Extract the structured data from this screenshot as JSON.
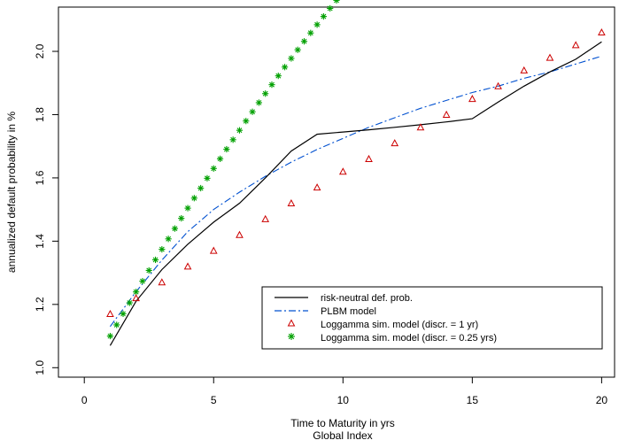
{
  "chart_data": {
    "type": "line",
    "xlabel": "Time to Maturity in yrs",
    "xlabel2": "Global Index",
    "ylabel": "annualized default probability in %",
    "xlim": [
      -1,
      20.5
    ],
    "ylim": [
      0.97,
      2.14
    ],
    "xticks": [
      0,
      5,
      10,
      15,
      20
    ],
    "yticks": [
      1.0,
      1.2,
      1.4,
      1.6,
      1.8,
      2.0
    ],
    "ytick_labels": [
      "1.0",
      "1.2",
      "1.4",
      "1.6",
      "1.8",
      "2.0"
    ],
    "legend_position": "bottom-right",
    "series": [
      {
        "name": "risk-neutral def. prob.",
        "style": "solid-line",
        "color": "#000000",
        "x": [
          1,
          2,
          3,
          4,
          5,
          6,
          7,
          8,
          9,
          10,
          11,
          12,
          13,
          14,
          15,
          16,
          17,
          18,
          19,
          20
        ],
        "y": [
          1.07,
          1.21,
          1.31,
          1.39,
          1.46,
          1.52,
          1.6,
          1.685,
          1.738,
          1.745,
          1.752,
          1.76,
          1.768,
          1.777,
          1.787,
          1.84,
          1.89,
          1.935,
          1.975,
          2.03
        ]
      },
      {
        "name": "PLBM model",
        "style": "dash-dot-line",
        "color": "#0050d0",
        "x": [
          1,
          2,
          3,
          4,
          5,
          6,
          7,
          8,
          9,
          10,
          11,
          12,
          13,
          14,
          15,
          16,
          17,
          18,
          19,
          20
        ],
        "y": [
          1.13,
          1.24,
          1.34,
          1.43,
          1.5,
          1.555,
          1.605,
          1.65,
          1.69,
          1.725,
          1.76,
          1.79,
          1.82,
          1.845,
          1.87,
          1.89,
          1.915,
          1.935,
          1.96,
          1.985
        ]
      },
      {
        "name": "Loggamma sim. model (discr. = 1 yr)",
        "style": "triangle-markers",
        "color": "#cc0000",
        "x": [
          1,
          2,
          3,
          4,
          5,
          6,
          7,
          8,
          9,
          10,
          11,
          12,
          13,
          14,
          15,
          16,
          17,
          18,
          19,
          20
        ],
        "y": [
          1.17,
          1.22,
          1.27,
          1.32,
          1.37,
          1.42,
          1.47,
          1.52,
          1.57,
          1.62,
          1.66,
          1.71,
          1.76,
          1.8,
          1.85,
          1.89,
          1.94,
          1.98,
          2.02,
          2.06
        ]
      },
      {
        "name": "Loggamma sim. model (discr. = 0.25 yrs)",
        "style": "asterisk-markers",
        "color": "#00a000",
        "model": {
          "a": 1.1,
          "b": 0.1418,
          "c": -0.002344,
          "x_start": 1,
          "x_end": 20,
          "step": 0.25
        }
      }
    ]
  }
}
